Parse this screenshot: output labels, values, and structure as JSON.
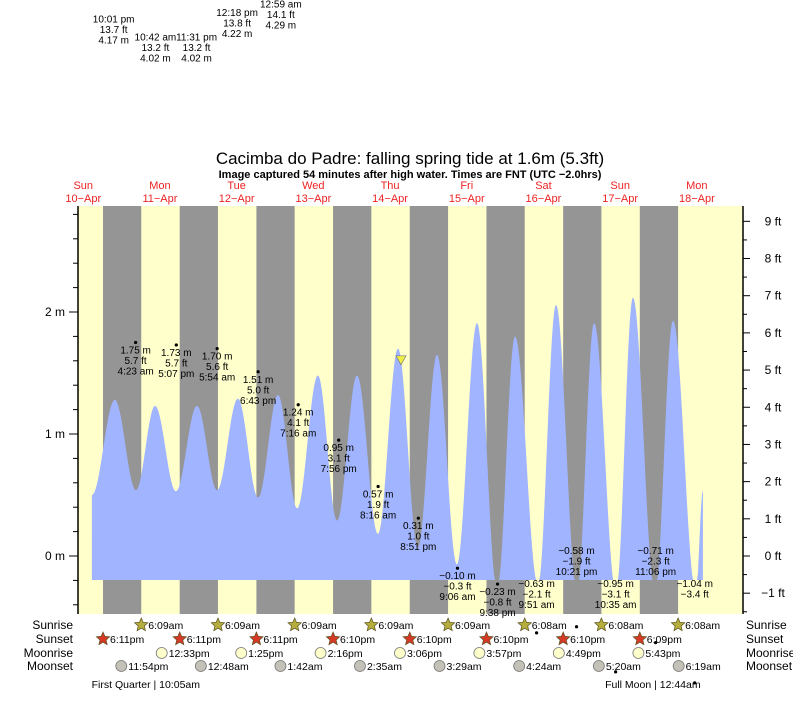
{
  "chart_data": {
    "type": "area",
    "title": "Cacimba do Padre: falling  spring tide at 1.6m (5.3ft)",
    "subtitle": "Image captured 54 minutes after high water. Times are FNT (UTC −2.0hrs)",
    "days": [
      {
        "dow": "Sun",
        "date": "10−Apr",
        "noon": "04-10 12:00"
      },
      {
        "dow": "Mon",
        "date": "11−Apr",
        "noon": "04-11 12:00"
      },
      {
        "dow": "Tue",
        "date": "12−Apr",
        "noon": "04-12 12:00"
      },
      {
        "dow": "Wed",
        "date": "13−Apr",
        "noon": "04-13 12:00"
      },
      {
        "dow": "Thu",
        "date": "14−Apr",
        "noon": "04-14 12:00"
      },
      {
        "dow": "Fri",
        "date": "15−Apr",
        "noon": "04-15 12:00"
      },
      {
        "dow": "Sat",
        "date": "16−Apr",
        "noon": "04-16 12:00"
      },
      {
        "dow": "Sun",
        "date": "17−Apr",
        "noon": "04-17 12:00"
      },
      {
        "dow": "Mon",
        "date": "18−Apr",
        "noon": "04-18 12:00"
      }
    ],
    "left_axis": {
      "unit": "m",
      "ylim": [
        -0.45,
        2.85
      ],
      "ticks": [
        {
          "v": 2,
          "label": "2 m"
        },
        {
          "v": 1,
          "label": "1 m"
        },
        {
          "v": 0,
          "label": "0 m"
        }
      ]
    },
    "right_axis": {
      "unit": "ft",
      "ticks": [
        {
          "v": 9,
          "label": "9 ft"
        },
        {
          "v": 8,
          "label": "8 ft"
        },
        {
          "v": 7,
          "label": "7 ft"
        },
        {
          "v": 6,
          "label": "6 ft"
        },
        {
          "v": 5,
          "label": "5 ft"
        },
        {
          "v": 4,
          "label": "4 ft"
        },
        {
          "v": 3,
          "label": "3 ft"
        },
        {
          "v": 2,
          "label": "2 ft"
        },
        {
          "v": 1,
          "label": "1 ft"
        },
        {
          "v": 0,
          "label": "0 ft"
        },
        {
          "v": -1,
          "label": "−1 ft"
        }
      ]
    },
    "tide_curve_m": [
      [
        "04-10 14:42",
        0.5
      ],
      [
        "04-10 21:53",
        1.28
      ],
      [
        "04-11 04:30",
        0.54
      ],
      [
        "04-11 10:27",
        1.23
      ],
      [
        "04-11 17:00",
        0.53
      ],
      [
        "04-11 23:35",
        1.23
      ],
      [
        "04-12 05:51",
        0.54
      ],
      [
        "04-12 12:24",
        1.29
      ],
      [
        "04-12 18:42",
        0.48
      ],
      [
        "04-13 00:56",
        1.32
      ],
      [
        "04-13 06:55",
        0.39
      ],
      [
        "04-13 13:26",
        1.48
      ],
      [
        "04-13 19:24",
        0.29
      ],
      [
        "04-14 01:39",
        1.48
      ],
      [
        "04-14 08:12",
        0.18
      ],
      [
        "04-14 14:30",
        1.7
      ],
      [
        "04-14 20:42",
        0.07
      ],
      [
        "04-15 02:41",
        1.65
      ],
      [
        "04-15 08:54",
        -0.07
      ],
      [
        "04-15 15:13",
        1.91
      ],
      [
        "04-15 21:30",
        -0.28
      ],
      [
        "04-16 03:06",
        1.8
      ],
      [
        "04-16 10:18",
        -0.24
      ],
      [
        "04-16 15:56",
        2.06
      ],
      [
        "04-16 22:30",
        -0.3
      ],
      [
        "04-17 03:50",
        1.91
      ],
      [
        "04-17 10:42",
        -0.3
      ],
      [
        "04-17 16:00",
        2.12
      ],
      [
        "04-17 22:54",
        -0.3
      ],
      [
        "04-18 04:32",
        1.93
      ],
      [
        "04-18 11:42",
        -0.3
      ],
      [
        "04-18 13:54",
        0.54
      ]
    ],
    "current": {
      "time": "04-14 15:25",
      "height_m": 1.6,
      "state": "falling"
    },
    "high_tides": [
      {
        "t": "04-10 22:01",
        "h": 4.17,
        "time": "10:01 pm",
        "ft": "13.7 ft",
        "m": "4.17 m"
      },
      {
        "t": "04-11 10:42",
        "h": 4.02,
        "time": "10:42 am",
        "ft": "13.2 ft",
        "m": "4.02 m"
      },
      {
        "t": "04-11 23:31",
        "h": 4.02,
        "time": "11:31 pm",
        "ft": "13.2 ft",
        "m": "4.02 m"
      },
      {
        "t": "04-12 12:18",
        "h": 4.22,
        "time": "12:18 pm",
        "ft": "13.8 ft",
        "m": "4.22 m"
      },
      {
        "t": "04-13 00:59",
        "h": 4.29,
        "time": "12:59 am",
        "ft": "14.1 ft",
        "m": "4.29 m"
      }
    ],
    "low_tides": [
      {
        "t": "04-11 04:23",
        "h": 1.75,
        "m": "1.75 m",
        "ft": "5.7 ft",
        "time": "4:23 am"
      },
      {
        "t": "04-11 17:07",
        "h": 1.73,
        "m": "1.73 m",
        "ft": "5.7 ft",
        "time": "5:07 pm"
      },
      {
        "t": "04-12 05:54",
        "h": 1.7,
        "m": "1.70 m",
        "ft": "5.6 ft",
        "time": "5:54 am"
      },
      {
        "t": "04-12 18:43",
        "h": 1.51,
        "m": "1.51 m",
        "ft": "5.0 ft",
        "time": "6:43 pm"
      },
      {
        "t": "04-13 07:16",
        "h": 1.24,
        "m": "1.24 m",
        "ft": "4.1 ft",
        "time": "7:16 am"
      },
      {
        "t": "04-13 19:56",
        "h": 0.95,
        "m": "0.95 m",
        "ft": "3.1 ft",
        "time": "7:56 pm"
      },
      {
        "t": "04-14 08:16",
        "h": 0.57,
        "m": "0.57 m",
        "ft": "1.9 ft",
        "time": "8:16 am"
      },
      {
        "t": "04-14 20:51",
        "h": 0.31,
        "m": "0.31 m",
        "ft": "1.0 ft",
        "time": "8:51 pm"
      },
      {
        "t": "04-15 09:06",
        "h": -0.1,
        "m": "−0.10 m",
        "ft": "−0.3 ft",
        "time": "9:06 am"
      },
      {
        "t": "04-15 21:38",
        "h": -0.23,
        "m": "−0.23 m",
        "ft": "−0.8 ft",
        "time": "9:38 pm"
      },
      {
        "t": "04-16 09:51",
        "h": -0.63,
        "m": "−0.63 m",
        "ft": "−2.1 ft",
        "time": "9:51 am"
      },
      {
        "t": "04-16 22:21",
        "h": -0.58,
        "m": "−0.58 m",
        "ft": "−1.9 ft",
        "time": "10:21 pm"
      },
      {
        "t": "04-17 10:35",
        "h": -0.95,
        "m": "−0.95 m",
        "ft": "−3.1 ft",
        "time": "10:35 am"
      },
      {
        "t": "04-17 23:06",
        "h": -0.71,
        "m": "−0.71 m",
        "ft": "−2.3 ft",
        "time": "11:06 pm"
      },
      {
        "t": "04-18 11:20",
        "h": -1.04,
        "m": "−1.04 m",
        "ft": "−3.4 ft",
        "time": ""
      }
    ],
    "rows": {
      "sunrise": "Sunrise",
      "sunset": "Sunset",
      "moonrise": "Moonrise",
      "moonset": "Moonset"
    },
    "sunrise": [
      {
        "t": "04-11 06:09",
        "label": "6:09am"
      },
      {
        "t": "04-12 06:09",
        "label": "6:09am"
      },
      {
        "t": "04-13 06:09",
        "label": "6:09am"
      },
      {
        "t": "04-14 06:09",
        "label": "6:09am"
      },
      {
        "t": "04-15 06:09",
        "label": "6:09am"
      },
      {
        "t": "04-16 06:08",
        "label": "6:08am"
      },
      {
        "t": "04-17 06:08",
        "label": "6:08am"
      },
      {
        "t": "04-18 06:08",
        "label": "6:08am"
      }
    ],
    "sunset": [
      {
        "t": "04-10 18:11",
        "label": "6:11pm"
      },
      {
        "t": "04-11 18:11",
        "label": "6:11pm"
      },
      {
        "t": "04-12 18:11",
        "label": "6:11pm"
      },
      {
        "t": "04-13 18:10",
        "label": "6:10pm"
      },
      {
        "t": "04-14 18:10",
        "label": "6:10pm"
      },
      {
        "t": "04-15 18:10",
        "label": "6:10pm"
      },
      {
        "t": "04-16 18:10",
        "label": "6:10pm"
      },
      {
        "t": "04-17 18:09",
        "label": "6:09pm"
      }
    ],
    "moonrise": [
      {
        "t": "04-11 12:33",
        "label": "12:33pm"
      },
      {
        "t": "04-12 13:25",
        "label": "1:25pm"
      },
      {
        "t": "04-13 14:16",
        "label": "2:16pm"
      },
      {
        "t": "04-14 15:06",
        "label": "3:06pm"
      },
      {
        "t": "04-15 15:57",
        "label": "3:57pm"
      },
      {
        "t": "04-16 16:49",
        "label": "4:49pm"
      },
      {
        "t": "04-17 17:43",
        "label": "5:43pm"
      }
    ],
    "moonset": [
      {
        "t": "04-10 23:54",
        "label": "11:54pm"
      },
      {
        "t": "04-12 00:48",
        "label": "12:48am"
      },
      {
        "t": "04-13 01:42",
        "label": "1:42am"
      },
      {
        "t": "04-14 02:35",
        "label": "2:35am"
      },
      {
        "t": "04-15 03:29",
        "label": "3:29am"
      },
      {
        "t": "04-16 04:24",
        "label": "4:24am"
      },
      {
        "t": "04-17 05:20",
        "label": "5:20am"
      },
      {
        "t": "04-18 06:19",
        "label": "6:19am"
      }
    ],
    "moon_phases": [
      {
        "t": "04-11 10:05",
        "label": "First Quarter | 10:05am"
      },
      {
        "t": "04-18 00:44",
        "label": "Full Moon | 12:44am"
      }
    ],
    "colors": {
      "day": "#ffffcc",
      "night": "#959595",
      "water": "#a0b4ff",
      "day_label": "#ee2222",
      "sunrise": "#b5ae3c",
      "sunset": "#d63a26",
      "moonrise": "#ffffcc",
      "moonset": "#c4c1b8",
      "current_marker": "#eeee44"
    }
  }
}
